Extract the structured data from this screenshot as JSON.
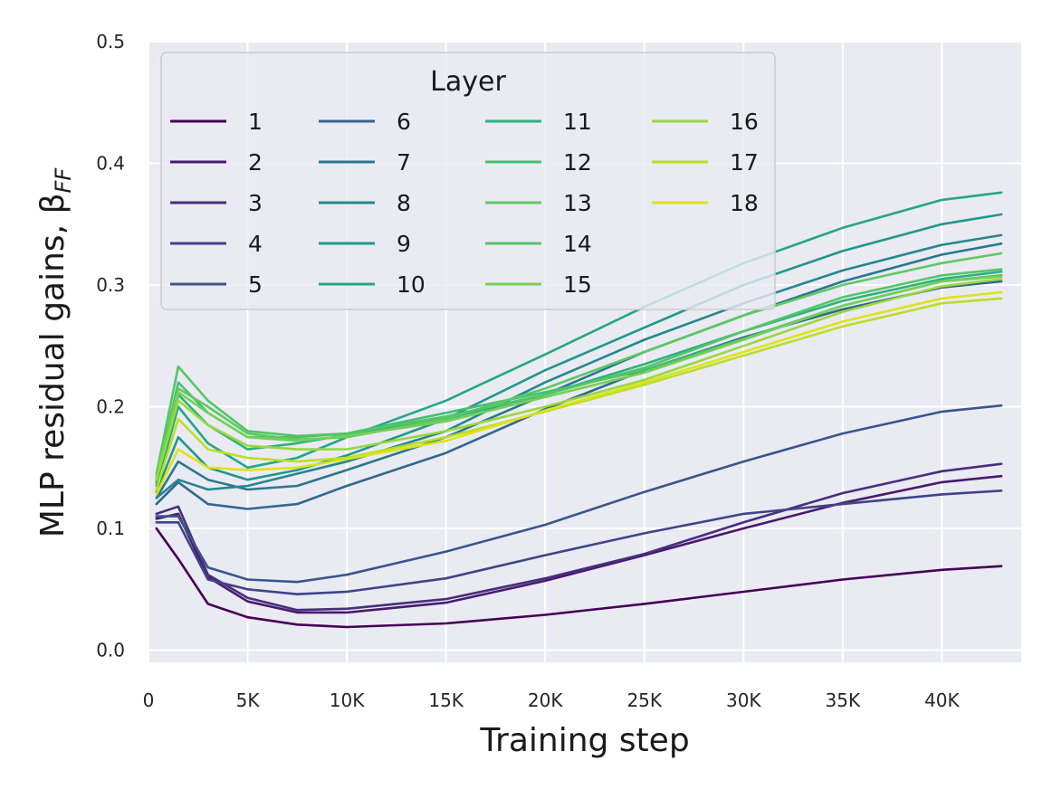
{
  "chart_data": {
    "type": "line",
    "xlabel": "Training step",
    "ylabel": "MLP residual gains, β",
    "ylabel_subscript": "FF",
    "xlim": [
      0,
      44000
    ],
    "ylim": [
      -0.01,
      0.5
    ],
    "xticks": [
      0,
      5000,
      10000,
      15000,
      20000,
      25000,
      30000,
      35000,
      40000
    ],
    "xtick_labels": [
      "0",
      "5K",
      "10K",
      "15K",
      "20K",
      "25K",
      "30K",
      "35K",
      "40K"
    ],
    "yticks": [
      0.0,
      0.1,
      0.2,
      0.3,
      0.4,
      0.5
    ],
    "ytick_labels": [
      "0.0",
      "0.1",
      "0.2",
      "0.3",
      "0.4",
      "0.5"
    ],
    "grid": true,
    "legend": {
      "title": "Layer",
      "position": "top-left",
      "columns": 4
    },
    "x": [
      400,
      1500,
      3000,
      5000,
      7500,
      10000,
      15000,
      20000,
      25000,
      30000,
      35000,
      40000,
      43000
    ],
    "series": [
      {
        "name": "1",
        "color": "#440154",
        "values": [
          0.1,
          0.075,
          0.038,
          0.027,
          0.021,
          0.019,
          0.022,
          0.029,
          0.038,
          0.048,
          0.058,
          0.066,
          0.069
        ]
      },
      {
        "name": "2",
        "color": "#481a6c",
        "values": [
          0.108,
          0.112,
          0.06,
          0.04,
          0.031,
          0.031,
          0.039,
          0.057,
          0.078,
          0.1,
          0.121,
          0.138,
          0.143
        ]
      },
      {
        "name": "3",
        "color": "#472f7d",
        "values": [
          0.112,
          0.118,
          0.062,
          0.043,
          0.033,
          0.034,
          0.042,
          0.059,
          0.079,
          0.105,
          0.129,
          0.147,
          0.153
        ]
      },
      {
        "name": "4",
        "color": "#414487",
        "values": [
          0.105,
          0.105,
          0.058,
          0.05,
          0.046,
          0.048,
          0.059,
          0.078,
          0.096,
          0.112,
          0.12,
          0.128,
          0.131
        ]
      },
      {
        "name": "5",
        "color": "#39568c",
        "values": [
          0.11,
          0.11,
          0.068,
          0.058,
          0.056,
          0.062,
          0.081,
          0.103,
          0.13,
          0.155,
          0.178,
          0.196,
          0.201
        ]
      },
      {
        "name": "6",
        "color": "#31688e",
        "values": [
          0.12,
          0.138,
          0.12,
          0.116,
          0.12,
          0.135,
          0.162,
          0.198,
          0.23,
          0.257,
          0.28,
          0.298,
          0.303
        ]
      },
      {
        "name": "7",
        "color": "#2a788e",
        "values": [
          0.125,
          0.155,
          0.14,
          0.132,
          0.135,
          0.148,
          0.175,
          0.21,
          0.245,
          0.275,
          0.303,
          0.325,
          0.334
        ]
      },
      {
        "name": "8",
        "color": "#23888e",
        "values": [
          0.125,
          0.14,
          0.132,
          0.135,
          0.145,
          0.155,
          0.18,
          0.22,
          0.255,
          0.285,
          0.312,
          0.333,
          0.341
        ]
      },
      {
        "name": "9",
        "color": "#1f988b",
        "values": [
          0.13,
          0.175,
          0.15,
          0.14,
          0.148,
          0.16,
          0.19,
          0.23,
          0.265,
          0.3,
          0.328,
          0.35,
          0.358
        ]
      },
      {
        "name": "10",
        "color": "#22a884",
        "values": [
          0.135,
          0.2,
          0.17,
          0.15,
          0.158,
          0.175,
          0.205,
          0.243,
          0.282,
          0.318,
          0.347,
          0.37,
          0.376
        ]
      },
      {
        "name": "11",
        "color": "#2db27d",
        "values": [
          0.138,
          0.21,
          0.185,
          0.165,
          0.17,
          0.177,
          0.19,
          0.21,
          0.235,
          0.262,
          0.287,
          0.305,
          0.311
        ]
      },
      {
        "name": "12",
        "color": "#44bf70",
        "values": [
          0.14,
          0.22,
          0.195,
          0.175,
          0.175,
          0.178,
          0.195,
          0.212,
          0.23,
          0.256,
          0.283,
          0.303,
          0.308
        ]
      },
      {
        "name": "13",
        "color": "#5ec962",
        "values": [
          0.142,
          0.215,
          0.2,
          0.178,
          0.173,
          0.175,
          0.19,
          0.215,
          0.245,
          0.275,
          0.3,
          0.318,
          0.326
        ]
      },
      {
        "name": "14",
        "color": "#54c568",
        "values": [
          0.145,
          0.233,
          0.205,
          0.18,
          0.176,
          0.178,
          0.192,
          0.21,
          0.232,
          0.262,
          0.29,
          0.308,
          0.313
        ]
      },
      {
        "name": "15",
        "color": "#75d054",
        "values": [
          0.143,
          0.212,
          0.195,
          0.175,
          0.172,
          0.176,
          0.188,
          0.208,
          0.228,
          0.255,
          0.283,
          0.303,
          0.307
        ]
      },
      {
        "name": "16",
        "color": "#97d83f",
        "values": [
          0.14,
          0.205,
          0.185,
          0.168,
          0.165,
          0.165,
          0.18,
          0.2,
          0.222,
          0.25,
          0.278,
          0.299,
          0.305
        ]
      },
      {
        "name": "17",
        "color": "#bade28",
        "values": [
          0.132,
          0.19,
          0.165,
          0.158,
          0.155,
          0.158,
          0.175,
          0.196,
          0.218,
          0.242,
          0.266,
          0.285,
          0.289
        ]
      },
      {
        "name": "18",
        "color": "#dde318",
        "values": [
          0.128,
          0.165,
          0.15,
          0.148,
          0.15,
          0.157,
          0.172,
          0.197,
          0.22,
          0.245,
          0.27,
          0.289,
          0.294
        ]
      }
    ]
  }
}
